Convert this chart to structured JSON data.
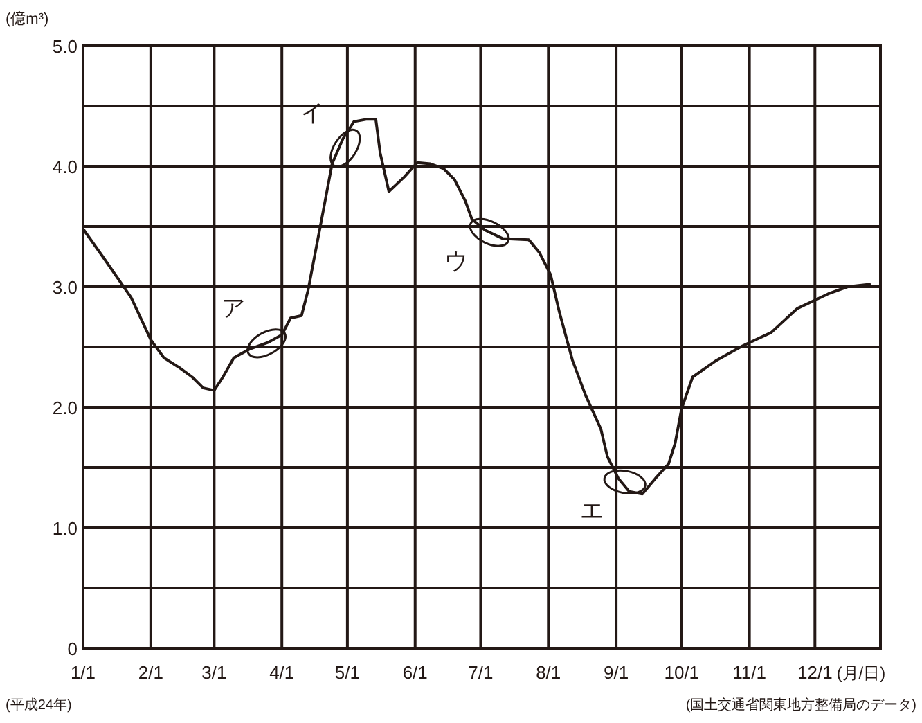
{
  "chart_data": {
    "type": "line",
    "ylabel": "(億m³)",
    "xlabel": "(月/日)",
    "x": [
      "--01-01",
      "--01-10",
      "--01-23",
      "--02-01",
      "--02-07",
      "--02-14",
      "--02-20",
      "--02-25",
      "--03-01",
      "--03-05",
      "--03-10",
      "--03-17",
      "--03-26",
      "--04-01",
      "--04-05",
      "--04-10",
      "--04-13",
      "--04-19",
      "--04-24",
      "--04-29",
      "--05-04",
      "--05-10",
      "--05-14",
      "--05-16",
      "--05-20",
      "--05-27",
      "--06-02",
      "--06-08",
      "--06-14",
      "--06-19",
      "--06-24",
      "--06-27",
      "--07-03",
      "--07-11",
      "--07-23",
      "--07-28",
      "--08-02",
      "--08-06",
      "--08-12",
      "--08-18",
      "--08-25",
      "--08-28",
      "--09-02",
      "--09-07",
      "--09-13",
      "--09-19",
      "--09-25",
      "--09-28",
      "--10-01",
      "--10-06",
      "--10-17",
      "--10-29",
      "--11-11",
      "--11-23",
      "--12-07",
      "--12-16",
      "--12-26"
    ],
    "series": [
      {
        "color": "#231815",
        "values": [
          3.48,
          3.25,
          2.91,
          2.56,
          2.41,
          2.33,
          2.25,
          2.16,
          2.14,
          2.25,
          2.41,
          2.48,
          2.54,
          2.6,
          2.74,
          2.76,
          2.97,
          3.54,
          4.02,
          4.23,
          4.37,
          4.39,
          4.39,
          4.11,
          3.79,
          3.91,
          4.03,
          4.02,
          3.98,
          3.89,
          3.71,
          3.56,
          3.47,
          3.4,
          3.39,
          3.28,
          3.1,
          2.79,
          2.39,
          2.1,
          1.82,
          1.59,
          1.41,
          1.3,
          1.28,
          1.41,
          1.53,
          1.7,
          1.99,
          2.25,
          2.39,
          2.51,
          2.62,
          2.82,
          2.94,
          3.0,
          3.02
        ]
      }
    ],
    "xlim": [
      "--01-01",
      "--12-31"
    ],
    "xticks": [
      {
        "value": "--01-01",
        "label": "1/1"
      },
      {
        "value": "--02-01",
        "label": "2/1"
      },
      {
        "value": "--03-01",
        "label": "3/1"
      },
      {
        "value": "--04-01",
        "label": "4/1"
      },
      {
        "value": "--05-01",
        "label": "5/1"
      },
      {
        "value": "--06-01",
        "label": "6/1"
      },
      {
        "value": "--07-01",
        "label": "7/1"
      },
      {
        "value": "--08-01",
        "label": "8/1"
      },
      {
        "value": "--09-01",
        "label": "9/1"
      },
      {
        "value": "--10-01",
        "label": "10/1"
      },
      {
        "value": "--11-01",
        "label": "11/1"
      },
      {
        "value": "--12-01",
        "label": "12/1"
      }
    ],
    "ylim": [
      0,
      5
    ],
    "yticks": [
      {
        "value": 0,
        "label": "0"
      },
      {
        "value": 0.5,
        "label": null
      },
      {
        "value": 1,
        "label": "1.0"
      },
      {
        "value": 1.5,
        "label": null
      },
      {
        "value": 2,
        "label": "2.0"
      },
      {
        "value": 2.5,
        "label": null
      },
      {
        "value": 3,
        "label": "3.0"
      },
      {
        "value": 3.5,
        "label": null
      },
      {
        "value": 4,
        "label": "4.0"
      },
      {
        "value": 4.5,
        "label": null
      },
      {
        "value": 5,
        "label": "5.0"
      }
    ],
    "grid": true,
    "marker": "none",
    "line_style": "solid",
    "annotations": [
      {
        "text": "ア",
        "x": "--03-25",
        "y": 2.53
      },
      {
        "text": "イ",
        "x": "--04-30",
        "y": 4.15
      },
      {
        "text": "ウ",
        "x": "--07-05",
        "y": 3.45
      },
      {
        "text": "エ",
        "x": "--09-05",
        "y": 1.38
      },
      "(平成24年)",
      "(国土交通省関東地方整備局のデータ)"
    ]
  }
}
